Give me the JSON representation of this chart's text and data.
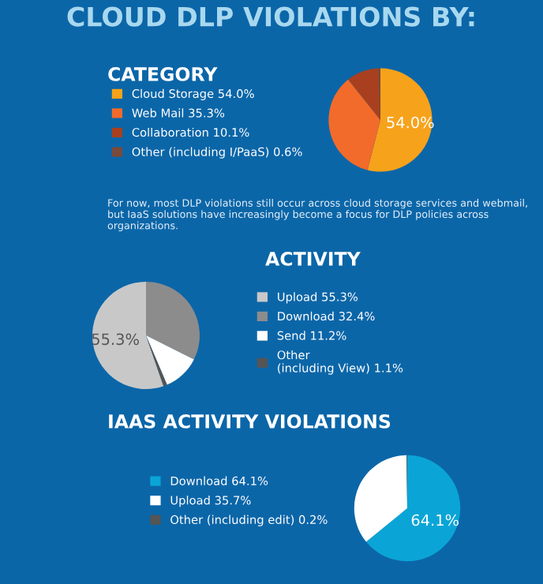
{
  "chart_data": [
    {
      "type": "pie",
      "title": "CLOUD DLP VIOLATIONS BY:",
      "subtitle": "CATEGORY",
      "categories": [
        "Cloud Storage 54.0%",
        "Web Mail 35.3%",
        "Collaboration 10.1%",
        "Other (including I/PaaS) 0.6%"
      ],
      "values": [
        54.0,
        35.3,
        10.1,
        0.6
      ],
      "colors": [
        "#f7a21b",
        "#f26b2a",
        "#a8401f",
        "#7a4a3a"
      ],
      "value_labels": [
        "54.0%",
        null,
        null,
        null
      ],
      "legend": "left",
      "annotations": [
        "For now, most DLP violations still occur across cloud storage services and webmail, but IaaS solutions have increasingly become a focus for DLP policies across organizations."
      ]
    },
    {
      "type": "pie",
      "title": "ACTIVITY",
      "categories": [
        "Upload 55.3%",
        "Download 32.4%",
        "Send 11.2%",
        "Other\n(including View) 1.1%"
      ],
      "values": [
        55.3,
        32.4,
        11.2,
        1.1
      ],
      "colors": [
        "#c8c8c8",
        "#8c8c8c",
        "#ffffff",
        "#555555"
      ],
      "value_labels": [
        "55.3%",
        null,
        null,
        null
      ],
      "legend": "right"
    },
    {
      "type": "pie",
      "title": "IAAS ACTIVITY VIOLATIONS",
      "categories": [
        "Download 64.1%",
        "Upload 35.7%",
        "Other (including edit) 0.2%"
      ],
      "values": [
        64.1,
        35.7,
        0.2
      ],
      "colors": [
        "#0aa5d6",
        "#ffffff",
        "#555555"
      ],
      "value_labels": [
        "64.1%",
        null,
        null
      ],
      "legend": "left"
    }
  ]
}
